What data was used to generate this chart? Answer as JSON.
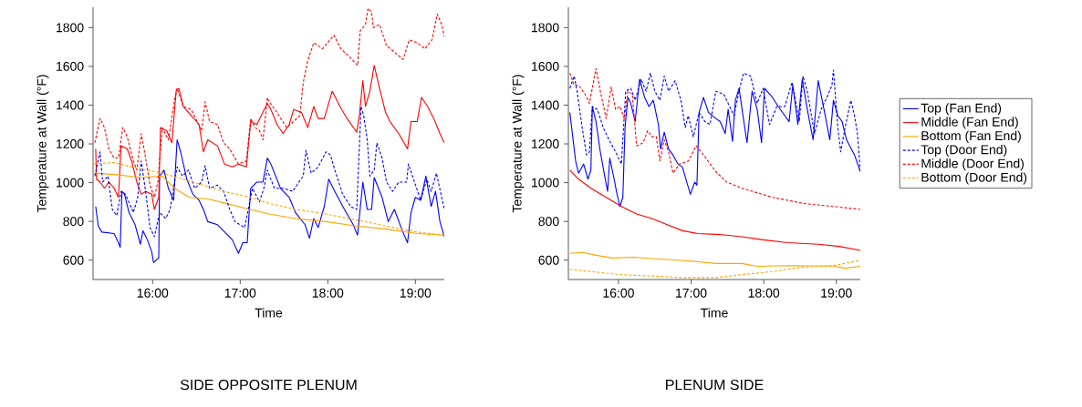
{
  "chart_data": [
    {
      "type": "line",
      "title": "SIDE OPPOSITE PLENUM",
      "xlabel": "Time",
      "ylabel": "Temperature at Wall (°F)",
      "xlim": [
        15.32,
        19.33
      ],
      "ylim": [
        500,
        1905
      ],
      "xticks": [
        {
          "value": 16,
          "label": "16:00"
        },
        {
          "value": 17,
          "label": "17:00"
        },
        {
          "value": 18,
          "label": "18:00"
        },
        {
          "value": 19,
          "label": "19:00"
        }
      ],
      "yticks": [
        600,
        800,
        1000,
        1200,
        1400,
        1600,
        1800
      ],
      "series": [
        {
          "color": "#0000ff",
          "line_style": "solid",
          "x": [
            15.35,
            15.38,
            15.42,
            15.56,
            15.61,
            15.63,
            15.65,
            15.68,
            15.73,
            15.8,
            15.86,
            15.89,
            15.94,
            15.99,
            16.01,
            16.07,
            16.08,
            16.13,
            16.18,
            16.24,
            16.28,
            16.32,
            16.39,
            16.46,
            16.53,
            16.58,
            16.63,
            16.74,
            16.84,
            16.91,
            16.98,
            17.03,
            17.08,
            17.12,
            17.19,
            17.26,
            17.31,
            17.35,
            17.46,
            17.56,
            17.63,
            17.74,
            17.79,
            17.84,
            17.89,
            17.96,
            18.01,
            18.08,
            18.19,
            18.29,
            18.34,
            18.4,
            18.45,
            18.5,
            18.53,
            18.62,
            18.69,
            18.76,
            18.85,
            18.91,
            18.95,
            19.0,
            19.06,
            19.12,
            19.18,
            19.23,
            19.28,
            19.33
          ],
          "values": [
            877,
            776,
            745,
            737,
            690,
            666,
            955,
            940,
            846,
            783,
            682,
            752,
            705,
            643,
            588,
            611,
            1034,
            1065,
            971,
            909,
            1221,
            1159,
            1018,
            940,
            909,
            862,
            799,
            783,
            737,
            705,
            635,
            690,
            690,
            971,
            1003,
            1003,
            1127,
            1096,
            971,
            924,
            846,
            783,
            713,
            815,
            768,
            877,
            1018,
            955,
            862,
            783,
            729,
            1003,
            862,
            862,
            1026,
            924,
            799,
            862,
            752,
            690,
            846,
            924,
            909,
            1034,
            877,
            955,
            799,
            721
          ]
        },
        {
          "color": "#ff0000",
          "line_style": "solid",
          "x": [
            15.35,
            15.36,
            15.4,
            15.45,
            15.5,
            15.56,
            15.61,
            15.64,
            15.71,
            15.76,
            15.82,
            15.87,
            15.92,
            15.99,
            16.02,
            16.07,
            16.09,
            16.16,
            16.22,
            16.27,
            16.3,
            16.35,
            16.44,
            16.53,
            16.58,
            16.63,
            16.74,
            16.82,
            16.91,
            16.98,
            17.07,
            17.12,
            17.19,
            17.24,
            17.31,
            17.35,
            17.42,
            17.49,
            17.56,
            17.61,
            17.7,
            17.77,
            17.84,
            17.89,
            17.96,
            18.05,
            18.14,
            18.22,
            18.33,
            18.36,
            18.4,
            18.43,
            18.48,
            18.53,
            18.59,
            18.66,
            18.71,
            18.81,
            18.91,
            18.95,
            19.02,
            19.07,
            19.14,
            19.21,
            19.28,
            19.33
          ],
          "values": [
            1174,
            1018,
            1003,
            971,
            1003,
            971,
            924,
            1190,
            1174,
            1112,
            1003,
            940,
            955,
            940,
            862,
            924,
            1284,
            1268,
            1206,
            1479,
            1487,
            1393,
            1346,
            1300,
            1159,
            1221,
            1190,
            1096,
            1081,
            1096,
            1081,
            1315,
            1300,
            1346,
            1409,
            1378,
            1300,
            1253,
            1300,
            1378,
            1362,
            1284,
            1393,
            1331,
            1331,
            1472,
            1393,
            1331,
            1260,
            1346,
            1526,
            1393,
            1472,
            1605,
            1487,
            1362,
            1315,
            1253,
            1174,
            1315,
            1315,
            1440,
            1393,
            1331,
            1253,
            1206
          ]
        },
        {
          "color": "#ffa500",
          "line_style": "solid",
          "x": [
            15.33,
            15.59,
            15.87,
            16.11,
            16.25,
            16.42,
            16.63,
            16.84,
            17.05,
            17.33,
            17.63,
            17.98,
            18.33,
            18.67,
            19.02,
            19.33
          ],
          "values": [
            1049,
            1041,
            1026,
            1034,
            971,
            924,
            916,
            893,
            869,
            838,
            815,
            799,
            776,
            760,
            737,
            729
          ]
        },
        {
          "color": "#0000ff",
          "line_style": "dashed",
          "x": [
            15.34,
            15.4,
            15.43,
            15.49,
            15.54,
            15.59,
            15.64,
            15.69,
            15.78,
            15.83,
            15.87,
            15.92,
            15.97,
            16.02,
            16.08,
            16.15,
            16.2,
            16.25,
            16.28,
            16.34,
            16.41,
            16.48,
            16.56,
            16.6,
            16.65,
            16.74,
            16.81,
            16.88,
            16.94,
            17.05,
            17.14,
            17.22,
            17.27,
            17.31,
            17.39,
            17.49,
            17.6,
            17.67,
            17.72,
            17.75,
            17.81,
            17.89,
            17.98,
            18.03,
            18.08,
            18.17,
            18.26,
            18.33,
            18.38,
            18.41,
            18.45,
            18.48,
            18.53,
            18.56,
            18.62,
            18.67,
            18.74,
            18.81,
            18.9,
            18.92,
            18.99,
            19.06,
            19.13,
            19.18,
            19.24,
            19.3,
            19.33
          ],
          "values": [
            1034,
            1159,
            1003,
            1034,
            862,
            830,
            955,
            940,
            846,
            924,
            1112,
            955,
            768,
            721,
            846,
            815,
            862,
            1003,
            1081,
            1034,
            1065,
            971,
            1003,
            1088,
            971,
            987,
            955,
            862,
            799,
            768,
            971,
            901,
            971,
            1065,
            971,
            971,
            955,
            1003,
            1034,
            1167,
            1049,
            1081,
            1159,
            1143,
            1065,
            940,
            877,
            862,
            1393,
            1346,
            1221,
            1034,
            1065,
            1205,
            1127,
            1003,
            955,
            1003,
            1003,
            1096,
            1003,
            909,
            1018,
            955,
            1049,
            924,
            862
          ]
        },
        {
          "color": "#ff0000",
          "line_style": "dashed",
          "x": [
            15.34,
            15.4,
            15.45,
            15.5,
            15.56,
            15.61,
            15.66,
            15.71,
            15.78,
            15.82,
            15.87,
            15.92,
            15.97,
            16.02,
            16.06,
            16.11,
            16.18,
            16.25,
            16.28,
            16.35,
            16.44,
            16.51,
            16.56,
            16.6,
            16.65,
            16.74,
            16.81,
            16.88,
            16.98,
            17.07,
            17.12,
            17.17,
            17.22,
            17.26,
            17.31,
            17.32,
            17.42,
            17.53,
            17.61,
            17.68,
            17.72,
            17.77,
            17.84,
            17.94,
            18.07,
            18.15,
            18.26,
            18.34,
            18.37,
            18.43,
            18.46,
            18.5,
            18.52,
            18.59,
            18.67,
            18.76,
            18.86,
            18.93,
            19.02,
            19.11,
            19.19,
            19.25,
            19.3,
            19.33
          ],
          "values": [
            1206,
            1331,
            1284,
            1174,
            1127,
            1127,
            1284,
            1237,
            1112,
            1065,
            1253,
            1127,
            987,
            924,
            1003,
            1284,
            1221,
            1425,
            1487,
            1393,
            1378,
            1315,
            1268,
            1417,
            1315,
            1300,
            1206,
            1174,
            1096,
            1112,
            1331,
            1284,
            1268,
            1221,
            1440,
            1425,
            1362,
            1284,
            1315,
            1346,
            1518,
            1628,
            1722,
            1691,
            1761,
            1691,
            1644,
            1605,
            1784,
            1816,
            1900,
            1878,
            1800,
            1816,
            1706,
            1675,
            1636,
            1737,
            1722,
            1691,
            1737,
            1870,
            1816,
            1753
          ]
        },
        {
          "color": "#ffa500",
          "line_style": "dashed",
          "x": [
            15.33,
            15.56,
            15.76,
            16.11,
            16.46,
            16.81,
            17.12,
            17.33,
            17.63,
            17.98,
            18.33,
            18.67,
            19.02,
            19.33
          ],
          "values": [
            1096,
            1104,
            1081,
            1049,
            1003,
            955,
            924,
            893,
            862,
            838,
            807,
            776,
            745,
            729
          ]
        }
      ]
    },
    {
      "type": "line",
      "title": "PLENUM SIDE",
      "xlabel": "Time",
      "ylabel": "Temperature at Wall (°F)",
      "legend": "right",
      "xlim": [
        15.31,
        19.33
      ],
      "ylim": [
        500,
        1905
      ],
      "xticks": [
        {
          "value": 16,
          "label": "16:00"
        },
        {
          "value": 17,
          "label": "17:00"
        },
        {
          "value": 18,
          "label": "18:00"
        },
        {
          "value": 19,
          "label": "19:00"
        }
      ],
      "yticks": [
        600,
        800,
        1000,
        1200,
        1400,
        1600,
        1800
      ],
      "series": [
        {
          "name": "Top (Fan End)",
          "color": "#0000ff",
          "line_style": "solid",
          "x": [
            15.33,
            15.37,
            15.41,
            15.45,
            15.52,
            15.58,
            15.62,
            15.64,
            15.69,
            15.75,
            15.81,
            15.85,
            15.88,
            15.94,
            15.98,
            16.02,
            16.06,
            16.09,
            16.13,
            16.17,
            16.23,
            16.29,
            16.36,
            16.42,
            16.48,
            16.55,
            16.58,
            16.63,
            16.69,
            16.75,
            16.82,
            16.88,
            16.94,
            16.99,
            17.05,
            17.08,
            17.11,
            17.17,
            17.24,
            17.34,
            17.4,
            17.47,
            17.51,
            17.57,
            17.61,
            17.66,
            17.72,
            17.77,
            17.84,
            17.91,
            17.97,
            18.01,
            18.12,
            18.2,
            18.29,
            18.35,
            18.4,
            18.47,
            18.53,
            18.6,
            18.68,
            18.75,
            18.83,
            18.91,
            18.96,
            19.02,
            19.08,
            19.14,
            19.25,
            19.33
          ],
          "values": [
            1362,
            1237,
            1112,
            1049,
            1096,
            1018,
            1065,
            1393,
            1315,
            1159,
            1034,
            955,
            1127,
            1018,
            940,
            877,
            924,
            1284,
            1440,
            1409,
            1315,
            1534,
            1440,
            1393,
            1425,
            1300,
            1174,
            1260,
            1174,
            1143,
            1096,
            1081,
            1003,
            940,
            1003,
            987,
            1362,
            1440,
            1362,
            1331,
            1315,
            1253,
            1378,
            1213,
            1425,
            1487,
            1331,
            1206,
            1472,
            1378,
            1206,
            1487,
            1440,
            1393,
            1346,
            1315,
            1503,
            1300,
            1534,
            1378,
            1221,
            1526,
            1378,
            1221,
            1425,
            1346,
            1315,
            1221,
            1143,
            1057
          ]
        },
        {
          "name": "Middle (Fan End)",
          "color": "#ff0000",
          "line_style": "solid",
          "x": [
            15.33,
            15.45,
            15.62,
            15.83,
            16.04,
            16.25,
            16.46,
            16.67,
            16.88,
            17.09,
            17.34,
            17.49,
            17.7,
            17.99,
            18.33,
            18.75,
            19.04,
            19.33
          ],
          "values": [
            1065,
            1018,
            971,
            924,
            877,
            838,
            815,
            783,
            752,
            737,
            733,
            729,
            721,
            705,
            690,
            682,
            671,
            650
          ]
        },
        {
          "name": "Bottom (Fan End)",
          "color": "#ffa500",
          "line_style": "solid",
          "x": [
            15.33,
            15.5,
            15.71,
            15.92,
            16.21,
            16.46,
            16.88,
            17.34,
            17.7,
            17.91,
            18.33,
            18.96,
            19.12,
            19.33
          ],
          "values": [
            635,
            640,
            624,
            611,
            615,
            608,
            599,
            583,
            583,
            568,
            572,
            569,
            558,
            568
          ]
        },
        {
          "name": "Top (Door End)",
          "color": "#0000ff",
          "line_style": "dashed",
          "x": [
            15.33,
            15.39,
            15.43,
            15.5,
            15.56,
            15.6,
            15.64,
            15.71,
            15.79,
            15.87,
            15.96,
            16.04,
            16.1,
            16.17,
            16.23,
            16.31,
            16.38,
            16.44,
            16.5,
            16.57,
            16.63,
            16.69,
            16.78,
            16.86,
            16.92,
            16.96,
            17.03,
            17.11,
            17.19,
            17.26,
            17.34,
            17.45,
            17.59,
            17.66,
            17.72,
            17.82,
            17.91,
            17.99,
            18.08,
            18.18,
            18.29,
            18.39,
            18.49,
            18.54,
            18.6,
            18.7,
            18.79,
            18.87,
            18.94,
            18.96,
            19.02,
            19.06,
            19.12,
            19.2,
            19.25,
            19.29,
            19.33
          ],
          "values": [
            1487,
            1550,
            1472,
            1284,
            1143,
            1159,
            1393,
            1378,
            1284,
            1221,
            1159,
            1096,
            1472,
            1487,
            1425,
            1534,
            1472,
            1565,
            1472,
            1425,
            1550,
            1472,
            1526,
            1425,
            1284,
            1346,
            1237,
            1362,
            1315,
            1300,
            1472,
            1456,
            1346,
            1472,
            1565,
            1550,
            1409,
            1487,
            1300,
            1393,
            1393,
            1518,
            1315,
            1550,
            1472,
            1253,
            1378,
            1440,
            1503,
            1581,
            1284,
            1159,
            1284,
            1425,
            1346,
            1253,
            1065
          ]
        },
        {
          "name": "Middle (Door End)",
          "color": "#ff0000",
          "line_style": "dashed",
          "x": [
            15.33,
            15.39,
            15.45,
            15.54,
            15.6,
            15.69,
            15.75,
            15.83,
            15.9,
            15.96,
            16.02,
            16.08,
            16.13,
            16.19,
            16.25,
            16.34,
            16.4,
            16.46,
            16.52,
            16.57,
            16.63,
            16.69,
            16.75,
            16.84,
            16.96,
            17.07,
            17.17,
            17.34,
            17.49,
            17.7,
            17.91,
            18.12,
            18.33,
            18.54,
            18.75,
            18.96,
            19.33
          ],
          "values": [
            1565,
            1503,
            1503,
            1456,
            1409,
            1589,
            1472,
            1331,
            1495,
            1378,
            1393,
            1331,
            1472,
            1456,
            1190,
            1206,
            1268,
            1237,
            1237,
            1112,
            1221,
            1159,
            1049,
            1096,
            1112,
            1190,
            1143,
            1057,
            1003,
            971,
            948,
            924,
            909,
            893,
            885,
            877,
            862
          ]
        },
        {
          "name": "Bottom (Door End)",
          "color": "#ffa500",
          "line_style": "dashed",
          "x": [
            15.33,
            15.62,
            16.04,
            16.46,
            16.88,
            17.34,
            17.7,
            18.12,
            18.54,
            18.96,
            19.33
          ],
          "values": [
            553,
            541,
            525,
            518,
            510,
            510,
            525,
            541,
            564,
            572,
            599
          ]
        }
      ]
    }
  ]
}
